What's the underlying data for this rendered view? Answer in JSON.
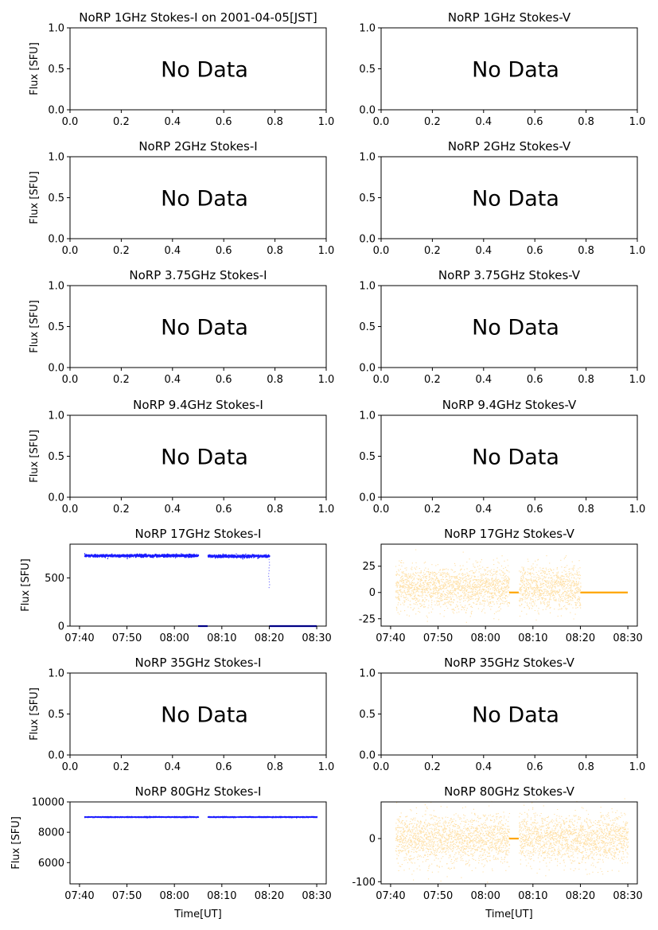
{
  "figure": {
    "x_axis_label": "Time[UT]"
  },
  "chart_data": [
    {
      "id": "p1i",
      "type": "scatter",
      "title": "NoRP 1GHz Stokes-I on 2001-04-05[JST]",
      "ylabel": "Flux [SFU]",
      "no_data": true,
      "no_data_text": "No Data",
      "xlim": [
        0,
        1
      ],
      "ylim": [
        0,
        1
      ],
      "x_ticks": [
        "0.0",
        "0.2",
        "0.4",
        "0.6",
        "0.8",
        "1.0"
      ],
      "y_ticks": [
        "0.0",
        "0.5",
        "1.0"
      ]
    },
    {
      "id": "p1v",
      "type": "scatter",
      "title": "NoRP 1GHz Stokes-V",
      "ylabel": "",
      "no_data": true,
      "no_data_text": "No Data",
      "xlim": [
        0,
        1
      ],
      "ylim": [
        0,
        1
      ],
      "x_ticks": [
        "0.0",
        "0.2",
        "0.4",
        "0.6",
        "0.8",
        "1.0"
      ],
      "y_ticks": [
        "0.0",
        "0.5",
        "1.0"
      ]
    },
    {
      "id": "p2i",
      "type": "scatter",
      "title": "NoRP 2GHz Stokes-I",
      "ylabel": "Flux [SFU]",
      "no_data": true,
      "no_data_text": "No Data",
      "xlim": [
        0,
        1
      ],
      "ylim": [
        0,
        1
      ],
      "x_ticks": [
        "0.0",
        "0.2",
        "0.4",
        "0.6",
        "0.8",
        "1.0"
      ],
      "y_ticks": [
        "0.0",
        "0.5",
        "1.0"
      ]
    },
    {
      "id": "p2v",
      "type": "scatter",
      "title": "NoRP 2GHz Stokes-V",
      "ylabel": "",
      "no_data": true,
      "no_data_text": "No Data",
      "xlim": [
        0,
        1
      ],
      "ylim": [
        0,
        1
      ],
      "x_ticks": [
        "0.0",
        "0.2",
        "0.4",
        "0.6",
        "0.8",
        "1.0"
      ],
      "y_ticks": [
        "0.0",
        "0.5",
        "1.0"
      ]
    },
    {
      "id": "p3i",
      "type": "scatter",
      "title": "NoRP 3.75GHz Stokes-I",
      "ylabel": "Flux [SFU]",
      "no_data": true,
      "no_data_text": "No Data",
      "xlim": [
        0,
        1
      ],
      "ylim": [
        0,
        1
      ],
      "x_ticks": [
        "0.0",
        "0.2",
        "0.4",
        "0.6",
        "0.8",
        "1.0"
      ],
      "y_ticks": [
        "0.0",
        "0.5",
        "1.0"
      ]
    },
    {
      "id": "p3v",
      "type": "scatter",
      "title": "NoRP 3.75GHz Stokes-V",
      "ylabel": "",
      "no_data": true,
      "no_data_text": "No Data",
      "xlim": [
        0,
        1
      ],
      "ylim": [
        0,
        1
      ],
      "x_ticks": [
        "0.0",
        "0.2",
        "0.4",
        "0.6",
        "0.8",
        "1.0"
      ],
      "y_ticks": [
        "0.0",
        "0.5",
        "1.0"
      ]
    },
    {
      "id": "p4i",
      "type": "scatter",
      "title": "NoRP 9.4GHz Stokes-I",
      "ylabel": "Flux [SFU]",
      "no_data": true,
      "no_data_text": "No Data",
      "xlim": [
        0,
        1
      ],
      "ylim": [
        0,
        1
      ],
      "x_ticks": [
        "0.0",
        "0.2",
        "0.4",
        "0.6",
        "0.8",
        "1.0"
      ],
      "y_ticks": [
        "0.0",
        "0.5",
        "1.0"
      ]
    },
    {
      "id": "p4v",
      "type": "scatter",
      "title": "NoRP 9.4GHz Stokes-V",
      "ylabel": "",
      "no_data": true,
      "no_data_text": "No Data",
      "xlim": [
        0,
        1
      ],
      "ylim": [
        0,
        1
      ],
      "x_ticks": [
        "0.0",
        "0.2",
        "0.4",
        "0.6",
        "0.8",
        "1.0"
      ],
      "y_ticks": [
        "0.0",
        "0.5",
        "1.0"
      ]
    },
    {
      "id": "p5i",
      "type": "scatter",
      "title": "NoRP 17GHz Stokes-I",
      "ylabel": "Flux [SFU]",
      "no_data": false,
      "color": "#0000ff",
      "xlim": [
        "07:38",
        "08:32"
      ],
      "ylim": [
        0,
        850
      ],
      "x_ticks": [
        "07:40",
        "07:50",
        "08:00",
        "08:10",
        "08:20",
        "08:30"
      ],
      "y_ticks": [
        0,
        500
      ],
      "segments": [
        {
          "start": "07:41",
          "end": "08:05",
          "level": 730,
          "spread": 25
        },
        {
          "start": "08:07",
          "end": "08:20",
          "level": 725,
          "spread": 25
        },
        {
          "start": "08:05",
          "end": "08:07",
          "level": 0,
          "spread": 0
        },
        {
          "start": "08:20",
          "end": "08:30",
          "level": 0,
          "spread": 0
        }
      ],
      "features": [
        {
          "time": "08:20",
          "from": 720,
          "to": 400,
          "note": "sparse drop"
        }
      ]
    },
    {
      "id": "p5v",
      "type": "scatter",
      "title": "NoRP 17GHz Stokes-V",
      "ylabel": "",
      "no_data": false,
      "color": "#ffa500",
      "xlim": [
        "07:38",
        "08:32"
      ],
      "ylim": [
        -32,
        46
      ],
      "x_ticks": [
        "07:40",
        "07:50",
        "08:00",
        "08:10",
        "08:20",
        "08:30"
      ],
      "y_ticks": [
        -25,
        0,
        25
      ],
      "segments": [
        {
          "start": "07:41",
          "end": "08:05",
          "level": 5,
          "spread": 26
        },
        {
          "start": "08:07",
          "end": "08:20",
          "level": 5,
          "spread": 26
        },
        {
          "start": "08:05",
          "end": "08:07",
          "level": 0,
          "spread": 0
        },
        {
          "start": "08:20",
          "end": "08:30",
          "level": 0,
          "spread": 0
        }
      ]
    },
    {
      "id": "p6i",
      "type": "scatter",
      "title": "NoRP 35GHz Stokes-I",
      "ylabel": "Flux [SFU]",
      "no_data": true,
      "no_data_text": "No Data",
      "xlim": [
        0,
        1
      ],
      "ylim": [
        0,
        1
      ],
      "x_ticks": [
        "0.0",
        "0.2",
        "0.4",
        "0.6",
        "0.8",
        "1.0"
      ],
      "y_ticks": [
        "0.0",
        "0.5",
        "1.0"
      ]
    },
    {
      "id": "p6v",
      "type": "scatter",
      "title": "NoRP 35GHz Stokes-V",
      "ylabel": "",
      "no_data": true,
      "no_data_text": "No Data",
      "xlim": [
        0,
        1
      ],
      "ylim": [
        0,
        1
      ],
      "x_ticks": [
        "0.0",
        "0.2",
        "0.4",
        "0.6",
        "0.8",
        "1.0"
      ],
      "y_ticks": [
        "0.0",
        "0.5",
        "1.0"
      ]
    },
    {
      "id": "p7i",
      "type": "scatter",
      "title": "NoRP 80GHz Stokes-I",
      "ylabel": "Flux [SFU]",
      "no_data": false,
      "color": "#0000ff",
      "xlim": [
        "07:38",
        "08:32"
      ],
      "ylim": [
        4600,
        10000
      ],
      "x_ticks": [
        "07:40",
        "07:50",
        "08:00",
        "08:10",
        "08:20",
        "08:30"
      ],
      "y_ticks": [
        6000,
        8000,
        10000
      ],
      "segments": [
        {
          "start": "07:41",
          "end": "08:05",
          "level": 9000,
          "spread": 40
        },
        {
          "start": "08:07",
          "end": "08:30",
          "level": 9000,
          "spread": 40
        }
      ]
    },
    {
      "id": "p7v",
      "type": "scatter",
      "title": "NoRP 80GHz Stokes-V",
      "ylabel": "",
      "no_data": false,
      "color": "#ffa500",
      "xlim": [
        "07:38",
        "08:32"
      ],
      "ylim": [
        -105,
        85
      ],
      "x_ticks": [
        "07:40",
        "07:50",
        "08:00",
        "08:10",
        "08:20",
        "08:30"
      ],
      "y_ticks": [
        -100,
        0
      ],
      "segments": [
        {
          "start": "07:41",
          "end": "08:05",
          "level": 0,
          "spread": 70
        },
        {
          "start": "08:07",
          "end": "08:30",
          "level": 0,
          "spread": 70
        },
        {
          "start": "08:05",
          "end": "08:07",
          "level": 0,
          "spread": 0
        }
      ]
    }
  ]
}
